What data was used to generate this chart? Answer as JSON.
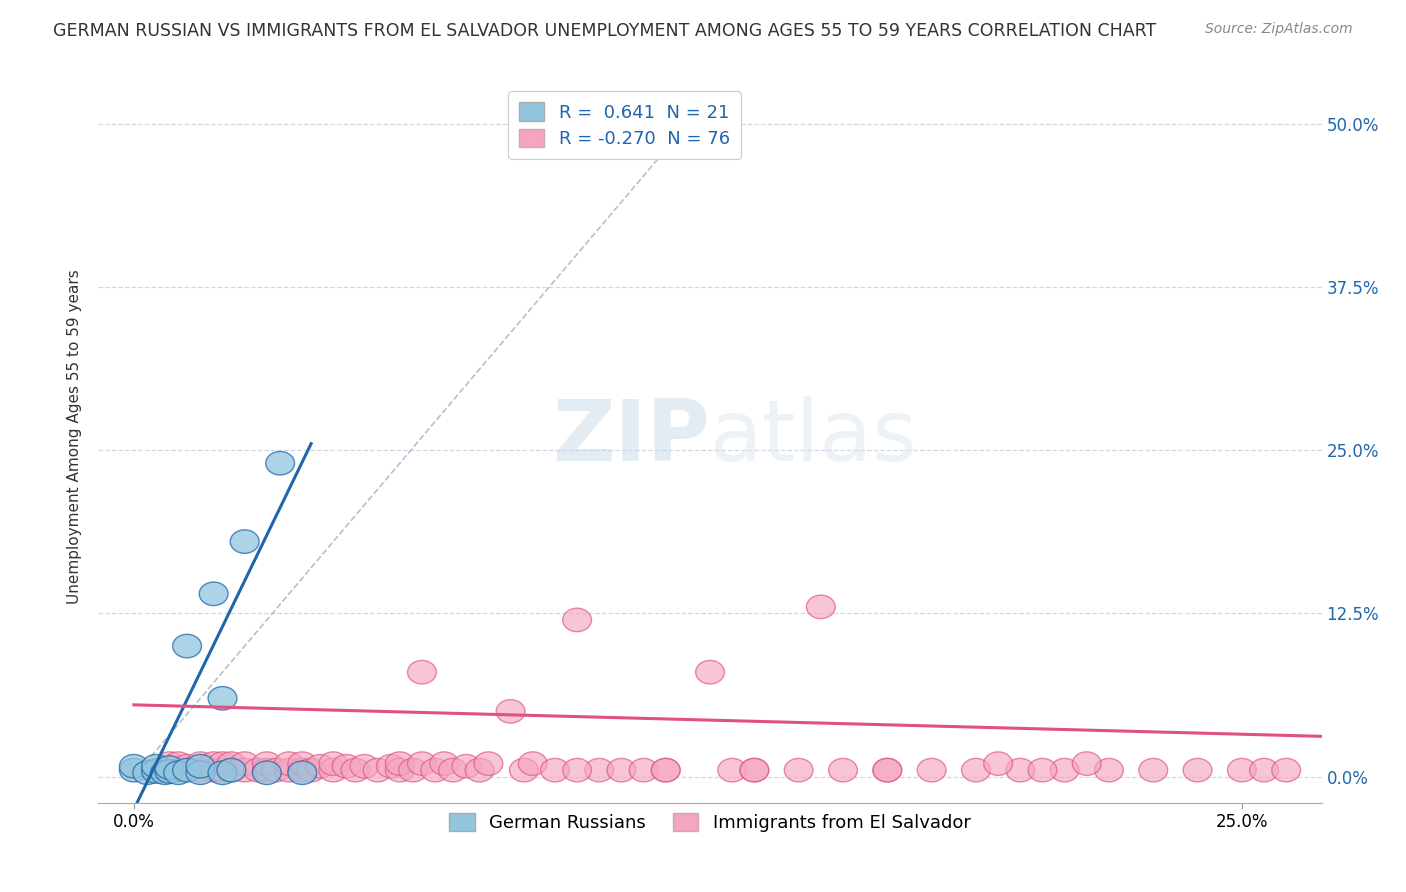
{
  "title": "GERMAN RUSSIAN VS IMMIGRANTS FROM EL SALVADOR UNEMPLOYMENT AMONG AGES 55 TO 59 YEARS CORRELATION CHART",
  "source": "Source: ZipAtlas.com",
  "ylabel": "Unemployment Among Ages 55 to 59 years",
  "ytick_labels": [
    "0.0%",
    "12.5%",
    "25.0%",
    "37.5%",
    "50.0%"
  ],
  "ytick_values": [
    0.0,
    0.125,
    0.25,
    0.375,
    0.5
  ],
  "xtick_values": [
    0.0,
    0.25
  ],
  "xtick_labels": [
    "0.0%",
    "25.0%"
  ],
  "xlim": [
    -0.008,
    0.268
  ],
  "ylim": [
    -0.02,
    0.54
  ],
  "legend_label1": "German Russians",
  "legend_label2": "Immigrants from El Salvador",
  "color_blue": "#92c5de",
  "color_pink": "#f4a6c0",
  "color_trendline_blue": "#2166ac",
  "color_trendline_pink": "#e05080",
  "color_diag": "#b0b8c8",
  "R1": 0.641,
  "N1": 21,
  "R2": -0.27,
  "N2": 76,
  "blue_x": [
    0.0,
    0.0,
    0.003,
    0.005,
    0.005,
    0.007,
    0.008,
    0.008,
    0.01,
    0.012,
    0.012,
    0.015,
    0.015,
    0.018,
    0.02,
    0.02,
    0.022,
    0.025,
    0.03,
    0.033,
    0.038
  ],
  "blue_y": [
    0.005,
    0.008,
    0.003,
    0.004,
    0.008,
    0.003,
    0.004,
    0.007,
    0.003,
    0.005,
    0.1,
    0.003,
    0.008,
    0.14,
    0.003,
    0.06,
    0.005,
    0.18,
    0.003,
    0.24,
    0.003
  ],
  "pink_x": [
    0.005,
    0.008,
    0.01,
    0.01,
    0.012,
    0.015,
    0.015,
    0.018,
    0.018,
    0.02,
    0.02,
    0.022,
    0.022,
    0.025,
    0.025,
    0.028,
    0.03,
    0.03,
    0.032,
    0.035,
    0.035,
    0.038,
    0.038,
    0.04,
    0.042,
    0.045,
    0.045,
    0.048,
    0.05,
    0.052,
    0.055,
    0.058,
    0.06,
    0.06,
    0.063,
    0.065,
    0.065,
    0.068,
    0.07,
    0.072,
    0.075,
    0.078,
    0.08,
    0.085,
    0.088,
    0.09,
    0.095,
    0.1,
    0.105,
    0.11,
    0.115,
    0.12,
    0.13,
    0.135,
    0.14,
    0.15,
    0.155,
    0.16,
    0.17,
    0.18,
    0.19,
    0.2,
    0.21,
    0.22,
    0.23,
    0.24,
    0.195,
    0.205,
    0.215,
    0.17,
    0.25,
    0.255,
    0.26,
    0.1,
    0.12,
    0.14
  ],
  "pink_y": [
    0.005,
    0.01,
    0.005,
    0.01,
    0.008,
    0.005,
    0.01,
    0.005,
    0.01,
    0.005,
    0.01,
    0.005,
    0.01,
    0.005,
    0.01,
    0.005,
    0.005,
    0.01,
    0.005,
    0.005,
    0.01,
    0.005,
    0.01,
    0.005,
    0.008,
    0.005,
    0.01,
    0.008,
    0.005,
    0.008,
    0.005,
    0.008,
    0.005,
    0.01,
    0.005,
    0.01,
    0.08,
    0.005,
    0.01,
    0.005,
    0.008,
    0.005,
    0.01,
    0.05,
    0.005,
    0.01,
    0.005,
    0.12,
    0.005,
    0.005,
    0.005,
    0.005,
    0.08,
    0.005,
    0.005,
    0.005,
    0.13,
    0.005,
    0.005,
    0.005,
    0.005,
    0.005,
    0.005,
    0.005,
    0.005,
    0.005,
    0.01,
    0.005,
    0.01,
    0.005,
    0.005,
    0.005,
    0.005,
    0.005,
    0.005,
    0.005
  ],
  "blue_trendline": [
    0.0,
    0.038,
    -0.008,
    0.27
  ],
  "pink_trendline_intercept": 0.055,
  "pink_trendline_slope": -0.09,
  "background_color": "#ffffff",
  "grid_color": "#d0d8e8",
  "watermark_zip": "ZIP",
  "watermark_atlas": "atlas",
  "title_fontsize": 12.5,
  "source_fontsize": 10,
  "axis_label_fontsize": 11,
  "tick_fontsize": 12,
  "legend_fontsize": 13
}
